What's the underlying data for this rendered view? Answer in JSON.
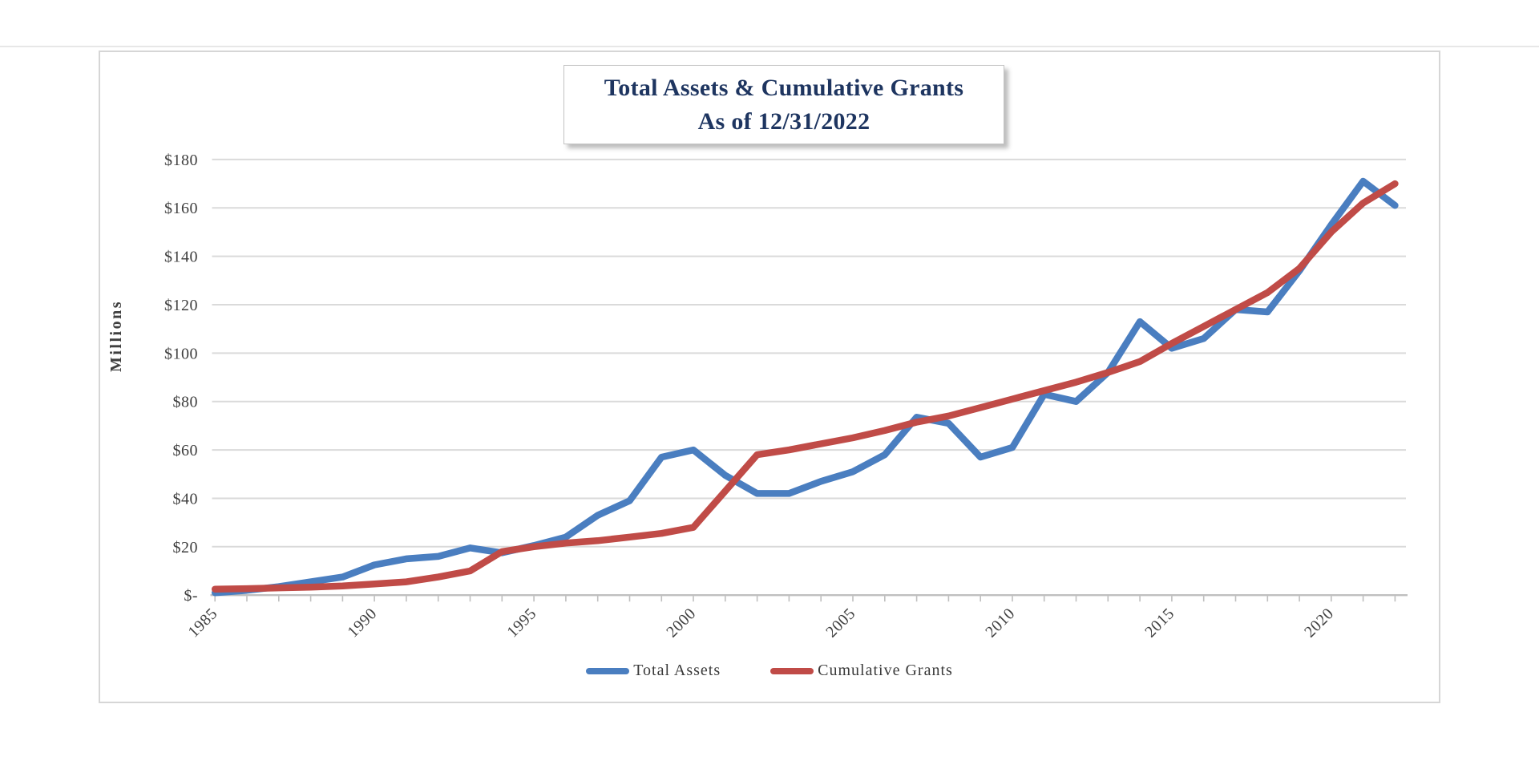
{
  "chart": {
    "frame_border_color": "#d6d6d6",
    "background": "#ffffff"
  },
  "chart_data": {
    "type": "line",
    "title": "Total Assets & Cumulative Grants",
    "subtitle": "As of 12/31/2022",
    "title_color": "#1e3560",
    "ylabel": "Millions",
    "ylim": [
      0,
      180
    ],
    "y_tick_step": 20,
    "y_tick_labels": [
      "$-",
      "$20",
      "$40",
      "$60",
      "$80",
      "$100",
      "$120",
      "$140",
      "$160",
      "$180"
    ],
    "x": [
      1985,
      1986,
      1987,
      1988,
      1989,
      1990,
      1991,
      1992,
      1993,
      1994,
      1995,
      1996,
      1997,
      1998,
      1999,
      2000,
      2001,
      2002,
      2003,
      2004,
      2005,
      2006,
      2007,
      2008,
      2009,
      2010,
      2011,
      2012,
      2013,
      2014,
      2015,
      2016,
      2017,
      2018,
      2019,
      2020,
      2021,
      2022
    ],
    "x_tick_labels": [
      "1985",
      "1990",
      "1995",
      "2000",
      "2005",
      "2010",
      "2015",
      "2020"
    ],
    "grid": true,
    "gridline_color": "#dadada",
    "axis_line_color": "#bfbfbf",
    "tick_label_color": "#3f3f3f",
    "legend_position": "bottom",
    "series": [
      {
        "name": "Total Assets",
        "color": "#4a7ec0",
        "values": [
          1,
          2,
          3.5,
          5.5,
          7.5,
          12.5,
          15,
          16,
          19.5,
          17.5,
          20.5,
          24,
          33,
          39,
          57,
          60,
          49.5,
          42,
          42,
          47,
          51,
          58,
          73.5,
          71,
          57,
          61,
          83,
          80,
          92,
          113,
          102,
          106,
          118,
          117,
          134,
          153,
          171,
          161
        ]
      },
      {
        "name": "Cumulative Grants",
        "color": "#c04b47",
        "values": [
          2.5,
          2.7,
          3,
          3.3,
          3.8,
          4.6,
          5.5,
          7.5,
          10,
          18,
          20,
          21.5,
          22.5,
          24,
          25.5,
          28,
          43,
          58,
          60,
          62.5,
          65,
          68,
          71.5,
          74,
          77.5,
          81,
          84.5,
          88,
          92,
          96.5,
          104,
          111,
          118,
          125,
          135,
          150,
          162,
          170
        ]
      }
    ]
  }
}
